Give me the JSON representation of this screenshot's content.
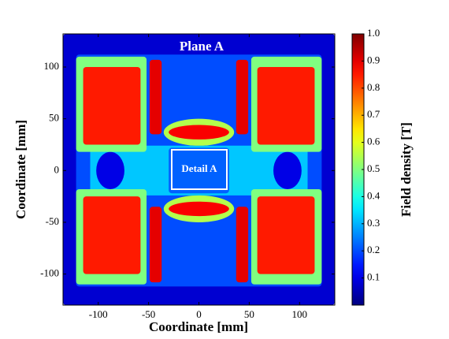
{
  "chart_data": {
    "type": "heatmap",
    "title": "Plane A",
    "annotation": "Detail A",
    "x_label": "Coordinate [mm]",
    "y_label": "Coordinate [mm]",
    "colorbar_label": "Field density [T]",
    "colormap": "jet",
    "xlim": [
      -135,
      135
    ],
    "ylim": [
      -130,
      132
    ],
    "xticks": [
      -100,
      -50,
      0,
      50,
      100
    ],
    "yticks": [
      -100,
      -50,
      0,
      50,
      100
    ],
    "clim": [
      0,
      1
    ],
    "cticks": [
      0.1,
      0.2,
      0.3,
      0.4,
      0.5,
      0.6,
      0.7,
      0.8,
      0.9,
      {
        "value": 1,
        "label": "1.0"
      }
    ],
    "regions": [
      {
        "shape": "rect",
        "x": [
          -135,
          135
        ],
        "y": [
          -130,
          132
        ],
        "value": 0.08
      },
      {
        "shape": "rect",
        "x": [
          -122,
          122
        ],
        "y": [
          -112,
          112
        ],
        "value": 0.2
      },
      {
        "shape": "rect",
        "x": [
          -108,
          108
        ],
        "y": [
          -24,
          24
        ],
        "value": 0.32
      },
      {
        "shape": "ellipse",
        "x": [
          -102,
          -74
        ],
        "y": [
          -18,
          18
        ],
        "value": 0.1
      },
      {
        "shape": "ellipse",
        "x": [
          74,
          102
        ],
        "y": [
          -18,
          18
        ],
        "value": 0.1
      },
      {
        "shape": "rect",
        "x": [
          -30,
          30
        ],
        "y": [
          -22,
          22
        ],
        "value": 0.22
      },
      {
        "shape": "rect",
        "x": [
          -122,
          -52
        ],
        "y": [
          18,
          110
        ],
        "value": 0.5
      },
      {
        "shape": "rect",
        "x": [
          52,
          122
        ],
        "y": [
          18,
          110
        ],
        "value": 0.5
      },
      {
        "shape": "rect",
        "x": [
          -122,
          -52
        ],
        "y": [
          -110,
          -18
        ],
        "value": 0.5
      },
      {
        "shape": "rect",
        "x": [
          52,
          122
        ],
        "y": [
          -110,
          -18
        ],
        "value": 0.5
      },
      {
        "shape": "rect",
        "x": [
          -115,
          -58
        ],
        "y": [
          25,
          100
        ],
        "value": 0.85
      },
      {
        "shape": "rect",
        "x": [
          58,
          115
        ],
        "y": [
          25,
          100
        ],
        "value": 0.85
      },
      {
        "shape": "rect",
        "x": [
          -115,
          -58
        ],
        "y": [
          -100,
          -25
        ],
        "value": 0.85
      },
      {
        "shape": "rect",
        "x": [
          58,
          115
        ],
        "y": [
          -100,
          -25
        ],
        "value": 0.85
      },
      {
        "shape": "rect",
        "x": [
          -49,
          -37
        ],
        "y": [
          35,
          107
        ],
        "value": 0.9
      },
      {
        "shape": "rect",
        "x": [
          37,
          49
        ],
        "y": [
          35,
          107
        ],
        "value": 0.9
      },
      {
        "shape": "rect",
        "x": [
          -49,
          -37
        ],
        "y": [
          -108,
          -35
        ],
        "value": 0.9
      },
      {
        "shape": "rect",
        "x": [
          37,
          49
        ],
        "y": [
          -108,
          -35
        ],
        "value": 0.9
      },
      {
        "shape": "ellipse",
        "x": [
          -35,
          35
        ],
        "y": [
          24,
          50
        ],
        "value": 0.55
      },
      {
        "shape": "ellipse",
        "x": [
          -35,
          35
        ],
        "y": [
          -50,
          -24
        ],
        "value": 0.55
      },
      {
        "shape": "ellipse",
        "x": [
          -30,
          30
        ],
        "y": [
          30,
          44
        ],
        "value": 0.88
      },
      {
        "shape": "ellipse",
        "x": [
          -30,
          30
        ],
        "y": [
          -44,
          -30
        ],
        "value": 0.88
      }
    ]
  }
}
